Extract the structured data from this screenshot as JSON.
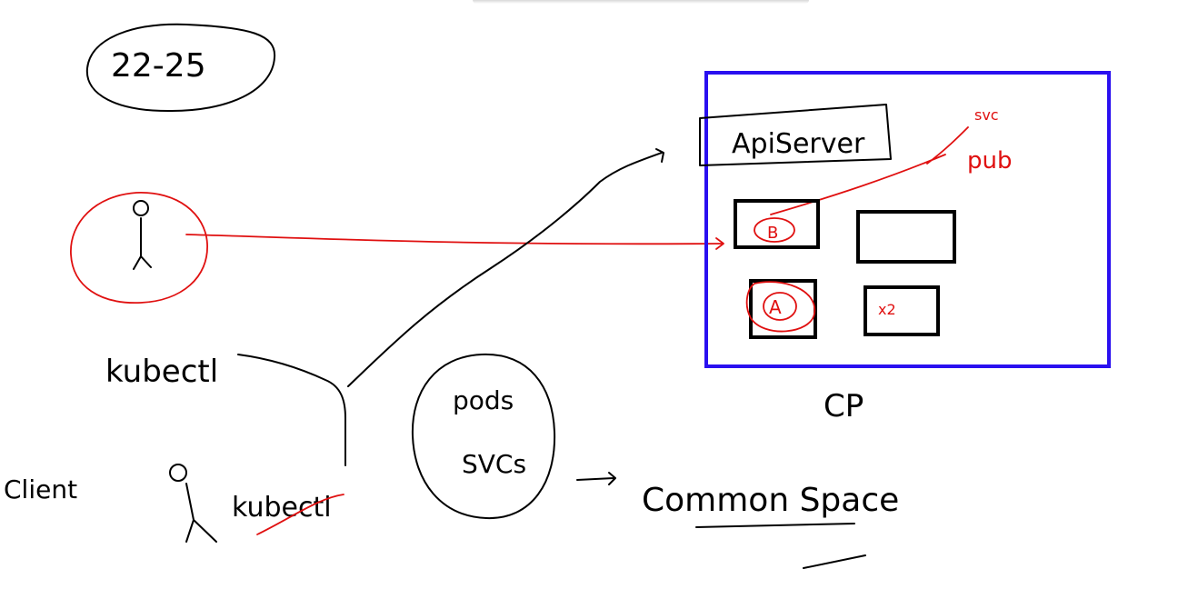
{
  "labels": {
    "range": "22-25",
    "kubectl_top": "kubectl",
    "client": "Client",
    "kubectl_bottom": "kubectl",
    "pods": "pods",
    "svcs": "SVCs",
    "common_space": "Common Space",
    "api_server": "ApiServer",
    "cp": "CP",
    "svc": "svc",
    "pub": "pub",
    "node_b": "B",
    "node_a": "A",
    "x2": "x2"
  },
  "colors": {
    "ink": "#000000",
    "red_ink": "#e01010",
    "control_plane": "#2a10f0"
  }
}
